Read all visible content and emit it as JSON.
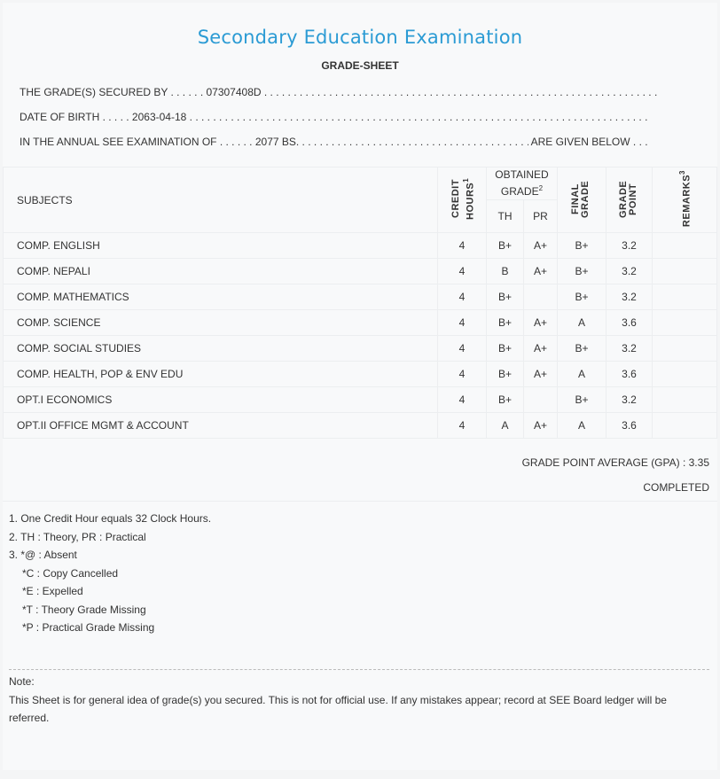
{
  "header": {
    "title": "Secondary Education Examination",
    "subtitle": "GRADE-SHEET"
  },
  "info": {
    "secured_by_label": "THE GRADE(S) SECURED BY",
    "secured_by_value": "07307408D",
    "dob_label": "DATE OF BIRTH",
    "dob_value": "2063-04-18",
    "exam_label": "IN THE ANNUAL SEE EXAMINATION OF",
    "exam_value": "2077 BS",
    "exam_suffix": "ARE GIVEN BELOW . . ."
  },
  "table": {
    "headers": {
      "subjects": "SUBJECTS",
      "credit": "CREDIT HOURS",
      "credit_sup": "1",
      "obtained": "OBTAINED GRADE",
      "obtained_sup": "2",
      "th": "TH",
      "pr": "PR",
      "final": "FINAL GRADE",
      "point": "GRADE POINT",
      "remarks": "REMARKS",
      "remarks_sup": "3"
    },
    "rows": [
      {
        "subject": "COMP. ENGLISH",
        "credit": "4",
        "th": "B+",
        "pr": "A+",
        "final": "B+",
        "point": "3.2",
        "remarks": ""
      },
      {
        "subject": "COMP. NEPALI",
        "credit": "4",
        "th": "B",
        "pr": "A+",
        "final": "B+",
        "point": "3.2",
        "remarks": ""
      },
      {
        "subject": "COMP. MATHEMATICS",
        "credit": "4",
        "th": "B+",
        "pr": "",
        "final": "B+",
        "point": "3.2",
        "remarks": ""
      },
      {
        "subject": "COMP. SCIENCE",
        "credit": "4",
        "th": "B+",
        "pr": "A+",
        "final": "A",
        "point": "3.6",
        "remarks": ""
      },
      {
        "subject": "COMP. SOCIAL STUDIES",
        "credit": "4",
        "th": "B+",
        "pr": "A+",
        "final": "B+",
        "point": "3.2",
        "remarks": ""
      },
      {
        "subject": "COMP. HEALTH, POP & ENV EDU",
        "credit": "4",
        "th": "B+",
        "pr": "A+",
        "final": "A",
        "point": "3.6",
        "remarks": ""
      },
      {
        "subject": "OPT.I ECONOMICS",
        "credit": "4",
        "th": "B+",
        "pr": "",
        "final": "B+",
        "point": "3.2",
        "remarks": ""
      },
      {
        "subject": "OPT.II OFFICE MGMT & ACCOUNT",
        "credit": "4",
        "th": "A",
        "pr": "A+",
        "final": "A",
        "point": "3.6",
        "remarks": ""
      }
    ]
  },
  "summary": {
    "gpa": "GRADE POINT AVERAGE (GPA) : 3.35",
    "status": "COMPLETED"
  },
  "footnotes": [
    "1. One Credit Hour equals 32 Clock Hours.",
    "2. TH : Theory, PR : Practical",
    "3. *@ : Absent",
    "*C : Copy Cancelled",
    "*E : Expelled",
    "*T : Theory Grade Missing",
    "*P : Practical Grade Missing"
  ],
  "note": {
    "label": "Note:",
    "text": "This Sheet is for general idea of grade(s) you secured. This is not for official use. If any mistakes appear; record at SEE Board ledger will be referred."
  }
}
